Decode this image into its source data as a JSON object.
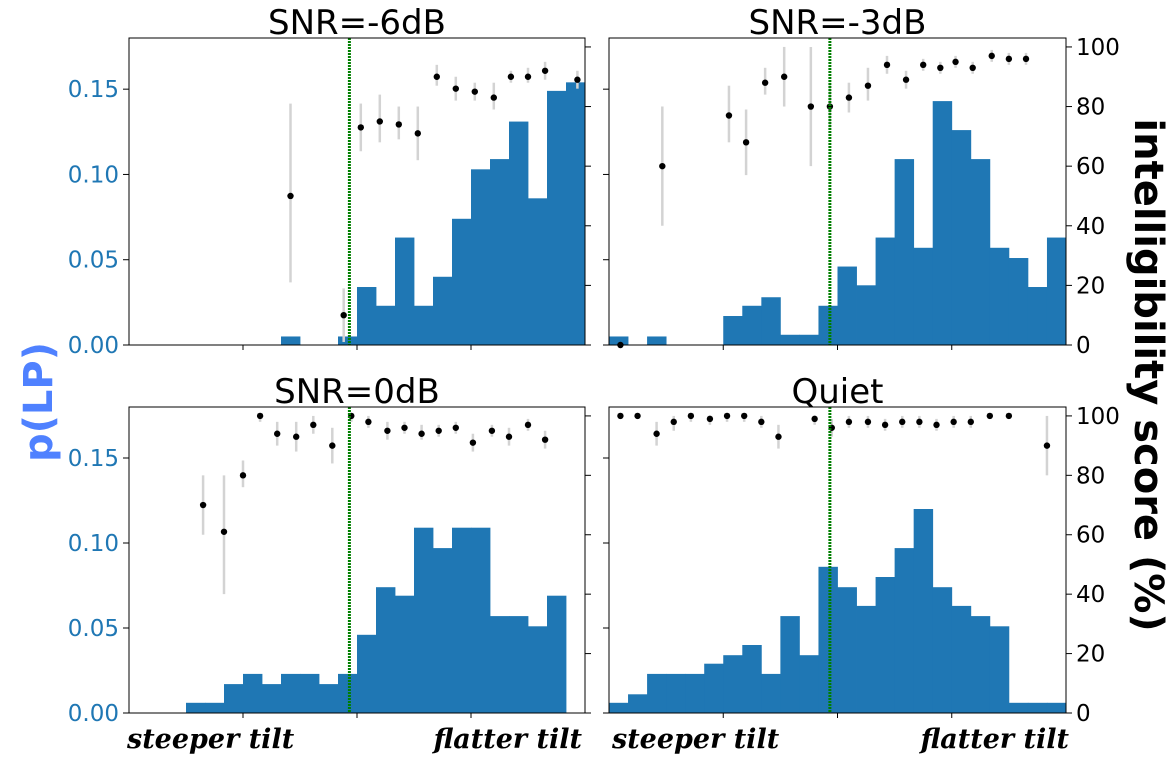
{
  "figure": {
    "left_ylabel": "p(LP)",
    "right_ylabel": "intelligibility score (%)",
    "x_left_note": "steeper tilt",
    "x_right_note": "flatter tilt"
  },
  "colors": {
    "bar": "#1f77b4",
    "dot": "#000000",
    "errorbar": "#d3d3d3",
    "threshold_line": "#007f00",
    "left_tick": "#1f77b4",
    "left_label": "#4f81ff"
  },
  "chart_data": [
    {
      "type": "bar",
      "title": "SNR=-6dB",
      "x_range": [
        0,
        24
      ],
      "threshold_x": 11.6,
      "left_axis": {
        "ylim": [
          0,
          0.18
        ],
        "ticks": [
          "0.00",
          "0.05",
          "0.10",
          "0.15"
        ],
        "tick_values": [
          0,
          0.05,
          0.1,
          0.15
        ]
      },
      "right_axis": {
        "ylim": [
          0,
          103
        ],
        "ticks": [
          "0",
          "20",
          "40",
          "60",
          "80",
          "100"
        ],
        "tick_values": [
          0,
          20,
          40,
          60,
          80,
          100
        ]
      },
      "hist_values": [
        0,
        0,
        0,
        0,
        0,
        0,
        0,
        0,
        0.005,
        0,
        0,
        0.005,
        0.034,
        0.023,
        0.063,
        0.023,
        0.04,
        0.074,
        0.103,
        0.109,
        0.131,
        0.086,
        0.149,
        0.154
      ],
      "score_points": [
        {
          "x": 8.5,
          "y": 50,
          "lo": 21,
          "hi": 81
        },
        {
          "x": 11.3,
          "y": 10,
          "lo": 1,
          "hi": 19
        },
        {
          "x": 12.2,
          "y": 73,
          "lo": 65,
          "hi": 81
        },
        {
          "x": 13.2,
          "y": 75,
          "lo": 68,
          "hi": 84
        },
        {
          "x": 14.2,
          "y": 74,
          "lo": 69,
          "hi": 80
        },
        {
          "x": 15.2,
          "y": 71,
          "lo": 62,
          "hi": 80
        },
        {
          "x": 16.2,
          "y": 90,
          "lo": 87,
          "hi": 94
        },
        {
          "x": 17.2,
          "y": 86,
          "lo": 82,
          "hi": 90
        },
        {
          "x": 18.2,
          "y": 85,
          "lo": 82,
          "hi": 88
        },
        {
          "x": 19.2,
          "y": 83,
          "lo": 79,
          "hi": 88
        },
        {
          "x": 20.1,
          "y": 90,
          "lo": 88,
          "hi": 92
        },
        {
          "x": 21.0,
          "y": 90,
          "lo": 88,
          "hi": 93
        },
        {
          "x": 21.9,
          "y": 92,
          "lo": 89,
          "hi": 95
        },
        {
          "x": 23.6,
          "y": 89,
          "lo": 86,
          "hi": 92
        }
      ]
    },
    {
      "type": "bar",
      "title": "SNR=-3dB",
      "x_range": [
        0,
        24
      ],
      "threshold_x": 11.6,
      "left_axis": {
        "ylim": [
          0,
          0.18
        ],
        "ticks": [],
        "tick_values": [
          0,
          0.05,
          0.1,
          0.15
        ]
      },
      "right_axis": {
        "ylim": [
          0,
          103
        ],
        "ticks": [
          "0",
          "20",
          "40",
          "60",
          "80",
          "100"
        ],
        "tick_values": [
          0,
          20,
          40,
          60,
          80,
          100
        ]
      },
      "hist_values": [
        0.005,
        0,
        0.005,
        0,
        0,
        0,
        0.017,
        0.023,
        0.028,
        0.006,
        0.006,
        0.023,
        0.046,
        0.035,
        0.063,
        0.109,
        0.057,
        0.143,
        0.126,
        0.109,
        0.057,
        0.051,
        0.034,
        0.063
      ],
      "score_points": [
        {
          "x": 0.6,
          "y": 0,
          "lo": 0,
          "hi": 1
        },
        {
          "x": 2.8,
          "y": 60,
          "lo": 40,
          "hi": 80
        },
        {
          "x": 6.3,
          "y": 77,
          "lo": 68,
          "hi": 87
        },
        {
          "x": 7.2,
          "y": 68,
          "lo": 57,
          "hi": 79
        },
        {
          "x": 8.2,
          "y": 88,
          "lo": 84,
          "hi": 93
        },
        {
          "x": 9.2,
          "y": 90,
          "lo": 80,
          "hi": 100
        },
        {
          "x": 10.6,
          "y": 80,
          "lo": 60,
          "hi": 100
        },
        {
          "x": 11.6,
          "y": 80,
          "lo": 73,
          "hi": 88
        },
        {
          "x": 12.6,
          "y": 83,
          "lo": 78,
          "hi": 88
        },
        {
          "x": 13.6,
          "y": 87,
          "lo": 82,
          "hi": 93
        },
        {
          "x": 14.6,
          "y": 94,
          "lo": 91,
          "hi": 97
        },
        {
          "x": 15.6,
          "y": 89,
          "lo": 86,
          "hi": 92
        },
        {
          "x": 16.5,
          "y": 94,
          "lo": 92,
          "hi": 96
        },
        {
          "x": 17.4,
          "y": 93,
          "lo": 91,
          "hi": 95
        },
        {
          "x": 18.2,
          "y": 95,
          "lo": 93,
          "hi": 97
        },
        {
          "x": 19.1,
          "y": 93,
          "lo": 91,
          "hi": 95
        },
        {
          "x": 20.1,
          "y": 97,
          "lo": 95,
          "hi": 99
        },
        {
          "x": 21.0,
          "y": 96,
          "lo": 94,
          "hi": 98
        },
        {
          "x": 21.9,
          "y": 96,
          "lo": 94,
          "hi": 98
        }
      ]
    },
    {
      "type": "bar",
      "title": "SNR=0dB",
      "x_range": [
        0,
        24
      ],
      "threshold_x": 11.6,
      "left_axis": {
        "ylim": [
          0,
          0.18
        ],
        "ticks": [
          "0.00",
          "0.05",
          "0.10",
          "0.15"
        ],
        "tick_values": [
          0,
          0.05,
          0.1,
          0.15
        ]
      },
      "right_axis": {
        "ylim": [
          0,
          103
        ],
        "ticks": [
          "0",
          "20",
          "40",
          "60",
          "80",
          "100"
        ],
        "tick_values": [
          0,
          20,
          40,
          60,
          80,
          100
        ]
      },
      "hist_values": [
        0,
        0,
        0,
        0.006,
        0.006,
        0.017,
        0.023,
        0.017,
        0.023,
        0.023,
        0.017,
        0.023,
        0.046,
        0.074,
        0.069,
        0.109,
        0.097,
        0.109,
        0.109,
        0.057,
        0.057,
        0.051,
        0.069,
        0
      ],
      "score_points": [
        {
          "x": 3.9,
          "y": 70,
          "lo": 60,
          "hi": 80
        },
        {
          "x": 5.0,
          "y": 61,
          "lo": 40,
          "hi": 80
        },
        {
          "x": 6.0,
          "y": 80,
          "lo": 76,
          "hi": 85
        },
        {
          "x": 6.9,
          "y": 100,
          "lo": 98,
          "hi": 100
        },
        {
          "x": 7.8,
          "y": 94,
          "lo": 90,
          "hi": 98
        },
        {
          "x": 8.8,
          "y": 93,
          "lo": 88,
          "hi": 98
        },
        {
          "x": 9.7,
          "y": 97,
          "lo": 94,
          "hi": 100
        },
        {
          "x": 10.7,
          "y": 90,
          "lo": 84,
          "hi": 96
        },
        {
          "x": 11.7,
          "y": 100,
          "lo": 98,
          "hi": 100
        },
        {
          "x": 12.6,
          "y": 98,
          "lo": 96,
          "hi": 100
        },
        {
          "x": 13.6,
          "y": 95,
          "lo": 92,
          "hi": 98
        },
        {
          "x": 14.5,
          "y": 96,
          "lo": 94,
          "hi": 98
        },
        {
          "x": 15.4,
          "y": 94,
          "lo": 92,
          "hi": 97
        },
        {
          "x": 16.3,
          "y": 95,
          "lo": 93,
          "hi": 97
        },
        {
          "x": 17.2,
          "y": 96,
          "lo": 94,
          "hi": 98
        },
        {
          "x": 18.1,
          "y": 91,
          "lo": 88,
          "hi": 94
        },
        {
          "x": 19.1,
          "y": 95,
          "lo": 93,
          "hi": 97
        },
        {
          "x": 20.0,
          "y": 93,
          "lo": 90,
          "hi": 96
        },
        {
          "x": 21.0,
          "y": 97,
          "lo": 95,
          "hi": 99
        },
        {
          "x": 21.9,
          "y": 92,
          "lo": 89,
          "hi": 95
        }
      ]
    },
    {
      "type": "bar",
      "title": "Quiet",
      "x_range": [
        0,
        24
      ],
      "threshold_x": 11.6,
      "left_axis": {
        "ylim": [
          0,
          0.18
        ],
        "ticks": [],
        "tick_values": [
          0,
          0.05,
          0.1,
          0.15
        ]
      },
      "right_axis": {
        "ylim": [
          0,
          103
        ],
        "ticks": [
          "0",
          "20",
          "40",
          "60",
          "80",
          "100"
        ],
        "tick_values": [
          0,
          20,
          40,
          60,
          80,
          100
        ]
      },
      "hist_values": [
        0.006,
        0.011,
        0.023,
        0.023,
        0.023,
        0.029,
        0.034,
        0.04,
        0.023,
        0.057,
        0.034,
        0.086,
        0.074,
        0.063,
        0.08,
        0.097,
        0.12,
        0.074,
        0.063,
        0.057,
        0.051,
        0.006,
        0.006,
        0.006
      ],
      "score_points": [
        {
          "x": 0.6,
          "y": 100,
          "lo": 99,
          "hi": 100
        },
        {
          "x": 1.5,
          "y": 100,
          "lo": 99,
          "hi": 100
        },
        {
          "x": 2.5,
          "y": 94,
          "lo": 90,
          "hi": 98
        },
        {
          "x": 3.4,
          "y": 98,
          "lo": 95,
          "hi": 100
        },
        {
          "x": 4.3,
          "y": 100,
          "lo": 98,
          "hi": 100
        },
        {
          "x": 5.3,
          "y": 99,
          "lo": 97,
          "hi": 100
        },
        {
          "x": 6.2,
          "y": 100,
          "lo": 98,
          "hi": 100
        },
        {
          "x": 7.1,
          "y": 100,
          "lo": 98,
          "hi": 100
        },
        {
          "x": 8.0,
          "y": 98,
          "lo": 96,
          "hi": 100
        },
        {
          "x": 8.9,
          "y": 93,
          "lo": 89,
          "hi": 97
        },
        {
          "x": 10.8,
          "y": 99,
          "lo": 97,
          "hi": 100
        },
        {
          "x": 11.7,
          "y": 96,
          "lo": 93,
          "hi": 99
        },
        {
          "x": 12.6,
          "y": 98,
          "lo": 96,
          "hi": 100
        },
        {
          "x": 13.6,
          "y": 98,
          "lo": 96,
          "hi": 100
        },
        {
          "x": 14.5,
          "y": 97,
          "lo": 95,
          "hi": 99
        },
        {
          "x": 15.4,
          "y": 98,
          "lo": 96,
          "hi": 100
        },
        {
          "x": 16.3,
          "y": 98,
          "lo": 96,
          "hi": 100
        },
        {
          "x": 17.2,
          "y": 97,
          "lo": 95,
          "hi": 99
        },
        {
          "x": 18.1,
          "y": 98,
          "lo": 96,
          "hi": 100
        },
        {
          "x": 19.0,
          "y": 98,
          "lo": 96,
          "hi": 100
        },
        {
          "x": 20.0,
          "y": 100,
          "lo": 99,
          "hi": 100
        },
        {
          "x": 21.0,
          "y": 100,
          "lo": 99,
          "hi": 100
        },
        {
          "x": 23.0,
          "y": 90,
          "lo": 80,
          "hi": 100
        }
      ]
    }
  ]
}
